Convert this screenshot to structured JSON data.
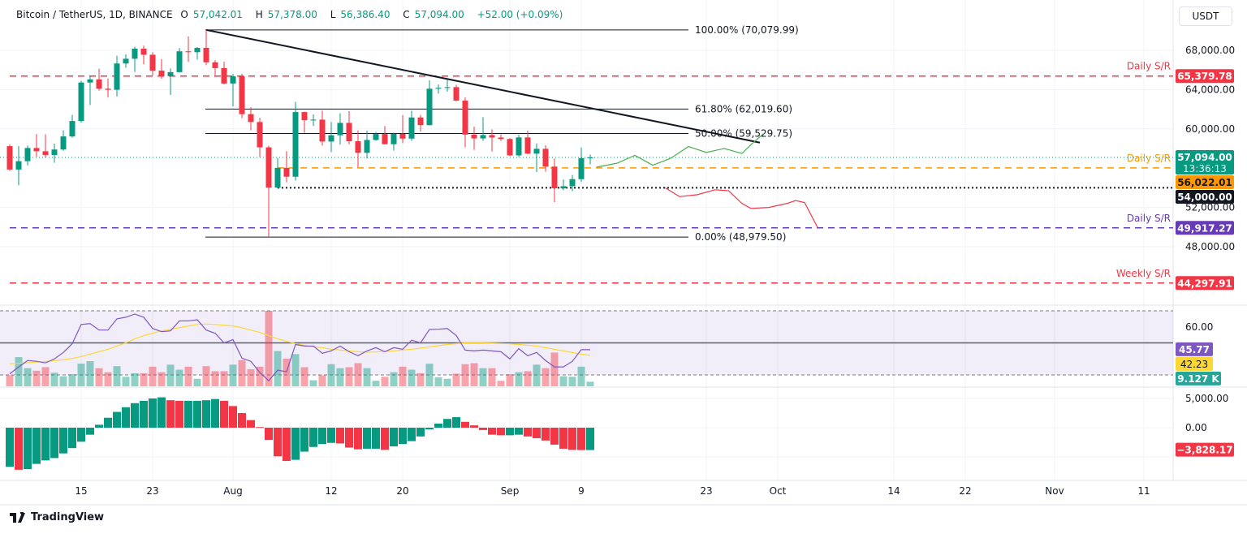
{
  "header": {
    "symbol": "Bitcoin / TetherUS, 1D, BINANCE",
    "open_label": "O",
    "open": "57,042.01",
    "high_label": "H",
    "high": "57,378.00",
    "low_label": "L",
    "low": "56,386.40",
    "close_label": "C",
    "close": "57,094.00",
    "change": "+52.00 (+0.09%)"
  },
  "currency": "USDT",
  "footer": {
    "brand": "TradingView",
    "logo_icon": "tradingview-logo-icon"
  },
  "colors": {
    "up": "#089981",
    "down": "#f23645",
    "rsi": "#7e57c2",
    "rsi_ma": "#fdd835",
    "fib": "#131722",
    "daily_sr_red": "#f23645",
    "daily_sr_orange": "#ff9800",
    "daily_sr_purple": "#673ab7",
    "projection_up": "#4caf50",
    "projection_down": "#f23645"
  },
  "chart_data": [
    {
      "type": "candlestick",
      "title": "Bitcoin / TetherUS, 1D, BINANCE",
      "x_start": "2024-07-07",
      "x_end": "2024-09-10",
      "interval": "1D",
      "ylim": [
        43000,
        71500
      ],
      "y_ticks": [
        "68,000.00",
        "64,000.00",
        "60,000.00",
        "52,000.00",
        "48,000.00"
      ],
      "x_ticks": [
        "15",
        "23",
        "Aug",
        "12",
        "20",
        "Sep",
        "9",
        "23",
        "Oct",
        "14",
        "22",
        "Nov",
        "11"
      ],
      "candles": [
        [
          58240,
          58400,
          55720,
          55860
        ],
        [
          55860,
          58240,
          54260,
          56710
        ],
        [
          56710,
          58300,
          56290,
          58050
        ],
        [
          58050,
          59470,
          57160,
          57720
        ],
        [
          57720,
          59450,
          57060,
          57340
        ],
        [
          57340,
          58500,
          56550,
          57900
        ],
        [
          57900,
          59850,
          57770,
          59230
        ],
        [
          59230,
          61420,
          59110,
          60800
        ],
        [
          60800,
          64900,
          60630,
          64720
        ],
        [
          64720,
          65390,
          62430,
          65040
        ],
        [
          65040,
          66130,
          63900,
          64090
        ],
        [
          64090,
          65130,
          63220,
          63980
        ],
        [
          63980,
          67440,
          63300,
          66660
        ],
        [
          66660,
          67600,
          66220,
          67140
        ],
        [
          67140,
          68370,
          65800,
          68170
        ],
        [
          68170,
          68480,
          66570,
          67550
        ],
        [
          67550,
          67800,
          65440,
          65930
        ],
        [
          65930,
          67100,
          65100,
          65370
        ],
        [
          65370,
          66150,
          63450,
          65780
        ],
        [
          65780,
          68240,
          65730,
          67900
        ],
        [
          67900,
          69400,
          66820,
          67810
        ],
        [
          67810,
          68320,
          67060,
          68250
        ],
        [
          68250,
          70080,
          66480,
          66780
        ],
        [
          66780,
          67000,
          65300,
          66190
        ],
        [
          66190,
          66830,
          64530,
          64620
        ],
        [
          64620,
          65600,
          62300,
          65350
        ],
        [
          65350,
          65600,
          61100,
          61500
        ],
        [
          61500,
          62200,
          59850,
          60700
        ],
        [
          60700,
          61120,
          57120,
          58120
        ],
        [
          58120,
          58290,
          48980,
          54020
        ],
        [
          54020,
          57040,
          53950,
          56030
        ],
        [
          56030,
          57730,
          54560,
          55130
        ],
        [
          55130,
          62750,
          54730,
          61710
        ],
        [
          61710,
          61750,
          59590,
          60880
        ],
        [
          60880,
          61470,
          60280,
          60940
        ],
        [
          60940,
          61860,
          58290,
          58710
        ],
        [
          58710,
          60700,
          57640,
          59350
        ],
        [
          59350,
          61580,
          58390,
          60610
        ],
        [
          60610,
          61800,
          58430,
          58740
        ],
        [
          58740,
          59850,
          56080,
          57560
        ],
        [
          57560,
          59810,
          57000,
          58870
        ],
        [
          58870,
          59690,
          58780,
          59480
        ],
        [
          59480,
          60280,
          58420,
          58440
        ],
        [
          58440,
          59620,
          57780,
          59490
        ],
        [
          59490,
          61400,
          58550,
          59010
        ],
        [
          59010,
          61840,
          58780,
          61160
        ],
        [
          61160,
          61420,
          59720,
          60380
        ],
        [
          60380,
          64950,
          60350,
          64090
        ],
        [
          64090,
          64520,
          63580,
          64180
        ],
        [
          64180,
          65000,
          63800,
          64250
        ],
        [
          64250,
          64480,
          62800,
          62880
        ],
        [
          62880,
          63210,
          58120,
          59420
        ],
        [
          59420,
          60230,
          57860,
          59030
        ],
        [
          59030,
          61190,
          58790,
          59370
        ],
        [
          59370,
          59940,
          57700,
          59120
        ],
        [
          59120,
          59450,
          58760,
          58970
        ],
        [
          58970,
          59060,
          57200,
          57300
        ],
        [
          57300,
          59420,
          57130,
          59130
        ],
        [
          59130,
          59820,
          57410,
          57480
        ],
        [
          57480,
          58520,
          55600,
          57970
        ],
        [
          57970,
          58330,
          55640,
          56160
        ],
        [
          56160,
          56990,
          52550,
          53950
        ],
        [
          53950,
          54850,
          53740,
          54160
        ],
        [
          54160,
          55300,
          53650,
          54880
        ],
        [
          54880,
          58100,
          54590,
          57020
        ],
        [
          57042,
          57378,
          56386.4,
          57094
        ]
      ],
      "fibonacci": [
        {
          "label": "100.00% (70,079.99)",
          "value": 70079.99
        },
        {
          "label": "61.80% (62,019.60)",
          "value": 62019.6
        },
        {
          "label": "50.00% (59,529.75)",
          "value": 59529.75
        },
        {
          "label": "0.00% (48,979.50)",
          "value": 48979.5
        }
      ],
      "trendline": {
        "from": [
          "2024-07-29",
          70080
        ],
        "to": [
          "2024-09-29",
          58600
        ]
      },
      "levels": [
        {
          "label": "Daily S/R",
          "value": 65379.78,
          "price_label": "65,379.78",
          "color": "#f23645",
          "style": "dashed",
          "from": "2024-07-07"
        },
        {
          "label": "Daily S/R",
          "value": 56022.01,
          "price_label": "56,022.01",
          "color": "#ff9800",
          "style": "dashed",
          "from": "2024-08-06"
        },
        {
          "label": "",
          "value": 54000,
          "price_label": "54,000.00",
          "color": "#131722",
          "style": "dotted",
          "from": "2024-08-06"
        },
        {
          "label": "Daily S/R",
          "value": 49917.27,
          "price_label": "49,917.27",
          "color": "#673ab7",
          "style": "dashed",
          "from": "2024-07-07"
        },
        {
          "label": "Weekly S/R",
          "value": 44297.91,
          "price_label": "44,297.91",
          "color": "#f23645",
          "style": "dashed",
          "from": "2024-07-07"
        }
      ],
      "last_price": {
        "value": 57094,
        "label": "57,094.00",
        "countdown": "13:36:13"
      },
      "projections": [
        {
          "direction": "up",
          "points": [
            [
              65.7,
              56100
            ],
            [
              68,
              56500
            ],
            [
              70,
              57300
            ],
            [
              72,
              56300
            ],
            [
              74,
              57000
            ],
            [
              76,
              58200
            ],
            [
              78,
              57600
            ],
            [
              80,
              58000
            ],
            [
              82,
              57500
            ],
            [
              83,
              58400
            ],
            [
              84.4,
              59500
            ]
          ]
        },
        {
          "direction": "down",
          "points": [
            [
              73.4,
              54000
            ],
            [
              75,
              53100
            ],
            [
              77,
              53300
            ],
            [
              79,
              53800
            ],
            [
              80.5,
              53700
            ],
            [
              82,
              52400
            ],
            [
              83,
              51900
            ],
            [
              85,
              52000
            ],
            [
              87,
              52400
            ],
            [
              88,
              52700
            ],
            [
              89,
              52500
            ],
            [
              90.5,
              49900
            ]
          ]
        }
      ]
    },
    {
      "type": "line",
      "name": "RSI",
      "ylim": [
        20,
        75
      ],
      "bands": [
        70,
        50,
        30
      ],
      "y_ticks": [
        "60.00"
      ],
      "rsi": [
        30.7,
        35,
        39,
        38.5,
        37.5,
        40,
        44,
        49.5,
        61.5,
        62,
        58,
        58,
        65,
        66,
        68,
        66,
        59,
        57,
        57.5,
        63.7,
        63.7,
        64.4,
        58,
        56,
        50,
        52,
        40.5,
        38.5,
        31.5,
        26.4,
        33,
        32,
        49,
        48,
        48,
        43.5,
        45,
        48,
        44.5,
        42,
        45,
        47,
        44.5,
        47,
        46,
        51.7,
        50,
        58.4,
        58.5,
        59,
        54.6,
        45.5,
        45,
        45.5,
        45,
        44.5,
        40,
        46.4,
        42,
        44,
        39,
        35,
        35,
        38.5,
        45.8,
        45.77
      ],
      "rsi_ma": [
        37,
        37.3,
        37.6,
        38,
        38.4,
        38.9,
        39.5,
        40.3,
        41.5,
        43,
        44.5,
        46,
        48,
        50,
        52.5,
        54.5,
        56,
        57.5,
        58.5,
        59.5,
        60.5,
        61.5,
        61.8,
        61.5,
        61,
        60.5,
        59.5,
        58,
        56.5,
        54.5,
        52.5,
        51,
        49.5,
        48.5,
        47.5,
        47,
        46,
        45.5,
        45,
        44.5,
        44.2,
        44.3,
        44.6,
        45,
        45.5,
        46,
        46.7,
        47.5,
        48.3,
        49,
        49.5,
        50,
        50,
        50,
        49.8,
        49.6,
        49.4,
        49,
        48.5,
        48,
        47,
        46,
        45,
        44,
        43,
        42.23
      ],
      "rsi_label": "45.77",
      "rsi_ma_label": "42.23"
    },
    {
      "type": "bar",
      "name": "Volume",
      "values": [
        22,
        58,
        36,
        31,
        38,
        27,
        20,
        24,
        45,
        50,
        36,
        28,
        40,
        19,
        26,
        26,
        39,
        28,
        43,
        33,
        39,
        15,
        40,
        30,
        30,
        43,
        52,
        34,
        39,
        150,
        70,
        55,
        64,
        38,
        12,
        22,
        44,
        36,
        38,
        46,
        36,
        11,
        19,
        28,
        39,
        33,
        26,
        45,
        18,
        15,
        25,
        44,
        46,
        36,
        36,
        11,
        24,
        28,
        30,
        43,
        36,
        67,
        20,
        19,
        39,
        9.127
      ],
      "last_label": "9.127 K"
    },
    {
      "type": "bar",
      "name": "MACD histogram",
      "ylim": [
        -8000,
        6500
      ],
      "y_ticks": [
        "5,000.00",
        "0.00"
      ],
      "values": [
        -6700,
        -7200,
        -7100,
        -6200,
        -5600,
        -5200,
        -4400,
        -3500,
        -2400,
        -1200,
        500,
        1700,
        2700,
        3500,
        4200,
        4600,
        5000,
        5200,
        4700,
        4600,
        4600,
        4600,
        4700,
        4900,
        4600,
        3700,
        2500,
        1300,
        100,
        -2100,
        -4900,
        -5700,
        -5500,
        -4100,
        -3300,
        -2800,
        -2600,
        -2700,
        -3400,
        -3700,
        -3600,
        -3600,
        -3800,
        -3200,
        -2800,
        -2300,
        -1500,
        -300,
        700,
        1500,
        1800,
        1000,
        400,
        -400,
        -1200,
        -1300,
        -1300,
        -1200,
        -1500,
        -1800,
        -2200,
        -2900,
        -3600,
        -3800,
        -3828.17,
        -3828.17
      ],
      "last_label": "−3,828.17"
    }
  ]
}
